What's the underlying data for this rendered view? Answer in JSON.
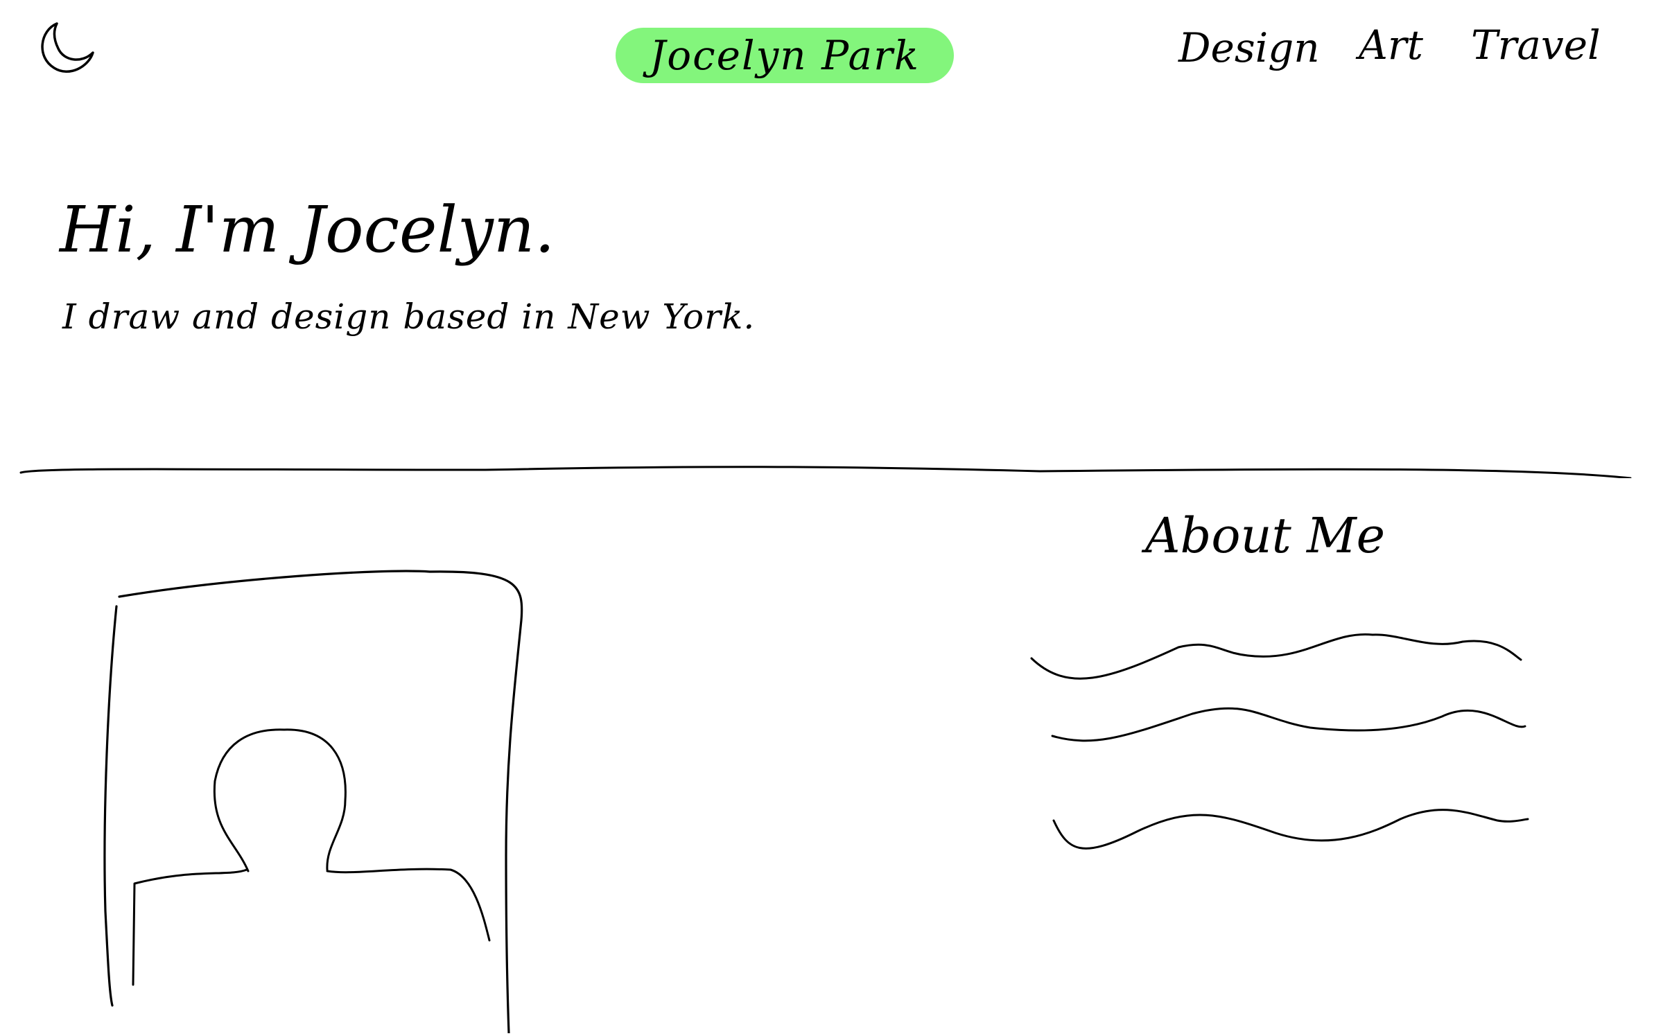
{
  "colors": {
    "brand_highlight": "#83f57c",
    "ink": "#000000",
    "background": "#ffffff"
  },
  "header": {
    "theme_toggle_icon": "moon-icon",
    "brand": "Jocelyn Park",
    "nav": [
      {
        "label": "Design"
      },
      {
        "label": "Art"
      },
      {
        "label": "Travel"
      }
    ]
  },
  "hero": {
    "heading": "Hi, I'm Jocelyn.",
    "subheading": "I draw and design based in New York."
  },
  "about": {
    "heading": "About Me",
    "photo_icon": "person-silhouette-icon",
    "text_placeholder_icon": "squiggle-text-icon"
  }
}
